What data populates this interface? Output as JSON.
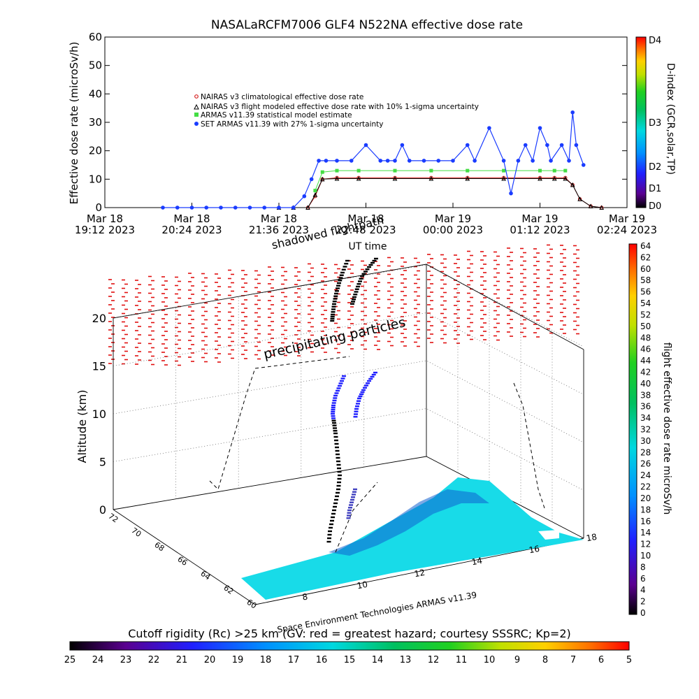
{
  "chart_data": [
    {
      "type": "scatter",
      "title": "NASALaRCFM7006  GLF4 N522NA effective dose rate",
      "ylabel": "Effective dose rate (microSv/h)",
      "ylim": [
        0,
        60
      ],
      "yticks": [
        "0",
        "10",
        "20",
        "30",
        "40",
        "50",
        "60"
      ],
      "xticks": [
        {
          "line1": "Mar 18",
          "line2": "19:12 2023"
        },
        {
          "line1": "Mar 18",
          "line2": "20:24 2023"
        },
        {
          "line1": "Mar 18",
          "line2": "21:36 2023"
        },
        {
          "line1": "Mar 18",
          "line2": "22:48 2023"
        },
        {
          "line1": "Mar 19",
          "line2": "00:00 2023"
        },
        {
          "line1": "Mar 19",
          "line2": "01:12 2023"
        },
        {
          "line1": "Mar 19",
          "line2": "02:24 2023"
        }
      ],
      "x_unit": "hours after Mar 18 19:12 2023",
      "xlim": [
        0,
        7.2
      ],
      "series": [
        {
          "name": "NAIRAS v3 climatological effective dose rate",
          "color": "#d62020",
          "x": [
            2.4,
            2.6,
            2.8,
            2.9,
            3.0,
            3.2,
            3.5,
            4.0,
            4.5,
            5.0,
            5.5,
            6.0,
            6.2,
            6.35,
            6.45,
            6.55,
            6.7,
            6.85
          ],
          "y": [
            0,
            0,
            0,
            4,
            10,
            10.5,
            10.5,
            10.5,
            10.5,
            10.5,
            10.5,
            10.5,
            10.5,
            10.5,
            8,
            3,
            0.5,
            0
          ]
        },
        {
          "name": "NAIRAS v3 flight modeled effective dose rate with 10% 1-sigma uncertainty",
          "color": "#000000",
          "x": [
            2.4,
            2.6,
            2.8,
            2.9,
            3.0,
            3.2,
            3.5,
            4.0,
            4.5,
            5.0,
            5.5,
            6.0,
            6.2,
            6.35,
            6.45,
            6.55,
            6.7,
            6.85
          ],
          "y": [
            0,
            0,
            0,
            4.5,
            10,
            10.2,
            10.2,
            10.2,
            10.2,
            10.2,
            10.2,
            10.2,
            10.2,
            10.2,
            8,
            3,
            0.5,
            0
          ]
        },
        {
          "name": "ARMAS v11.39 statistical model estimate",
          "color": "#44dd44",
          "x": [
            2.9,
            3.0,
            3.2,
            3.5,
            4.0,
            4.5,
            5.0,
            5.5,
            6.0,
            6.2,
            6.35
          ],
          "y": [
            6,
            12.5,
            13,
            13,
            13,
            13,
            13,
            13,
            13,
            13,
            13
          ]
        },
        {
          "name": "SET ARMAS v11.39 with 27% 1-sigma uncertainty",
          "color": "#1a3cff",
          "x": [
            0.8,
            1.0,
            1.2,
            1.4,
            1.6,
            1.8,
            2.0,
            2.2,
            2.4,
            2.6,
            2.75,
            2.85,
            2.95,
            3.05,
            3.2,
            3.4,
            3.6,
            3.8,
            3.9,
            4.0,
            4.1,
            4.2,
            4.4,
            4.6,
            4.8,
            5.0,
            5.1,
            5.3,
            5.5,
            5.6,
            5.7,
            5.8,
            5.9,
            6.0,
            6.1,
            6.15,
            6.3,
            6.4,
            6.45,
            6.5,
            6.6
          ],
          "y": [
            0,
            0,
            0,
            0,
            0,
            0,
            0,
            0,
            0,
            0,
            4,
            10,
            16.5,
            16.5,
            16.5,
            16.5,
            22,
            16.5,
            16.5,
            16.5,
            22,
            16.5,
            16.5,
            16.5,
            16.5,
            22,
            16.5,
            28,
            16.5,
            5,
            16.5,
            22,
            16.5,
            28,
            22,
            16.5,
            22,
            16.5,
            33.5,
            22,
            15
          ]
        }
      ],
      "colorbar": {
        "label": "D-index (GCR,solar,TP)",
        "ticks": [
          "D0",
          "D1",
          "D2",
          "D3",
          "D4"
        ]
      }
    },
    {
      "type": "heatmap",
      "label": "flight effective dose rate microSv/h",
      "range": [
        0,
        64
      ],
      "ticks": [
        "0",
        "2",
        "4",
        "6",
        "8",
        "10",
        "12",
        "14",
        "16",
        "18",
        "20",
        "22",
        "24",
        "26",
        "28",
        "30",
        "32",
        "34",
        "36",
        "38",
        "40",
        "42",
        "44",
        "46",
        "48",
        "50",
        "52",
        "54",
        "56",
        "58",
        "60",
        "62",
        "64"
      ]
    },
    {
      "type": "heatmap",
      "label": "Cutoff rigidity (Rc) >25 km (GV: red = greatest hazard; courtesy SSSRC; Kp=2)",
      "range": [
        25,
        5
      ],
      "ticks": [
        "25",
        "24",
        "23",
        "22",
        "21",
        "20",
        "19",
        "18",
        "17",
        "16",
        "15",
        "14",
        "13",
        "12",
        "11",
        "10",
        "9",
        "8",
        "7",
        "6",
        "5"
      ]
    }
  ],
  "panel3d": {
    "ut_time_label": "UT time",
    "overlap_label": "shadowed flightpath",
    "annotation": "precipitating particles",
    "zlabel": "Altitude (km)",
    "zticks": [
      "0",
      "5",
      "10",
      "15",
      "20"
    ],
    "lat_ticks": [
      "72",
      "70",
      "68",
      "66",
      "64",
      "62",
      "60"
    ],
    "lon_ticks": [
      "8",
      "10",
      "12",
      "14",
      "16",
      "18"
    ],
    "credit": "Space Environment Technologies ARMAS v11.39"
  }
}
